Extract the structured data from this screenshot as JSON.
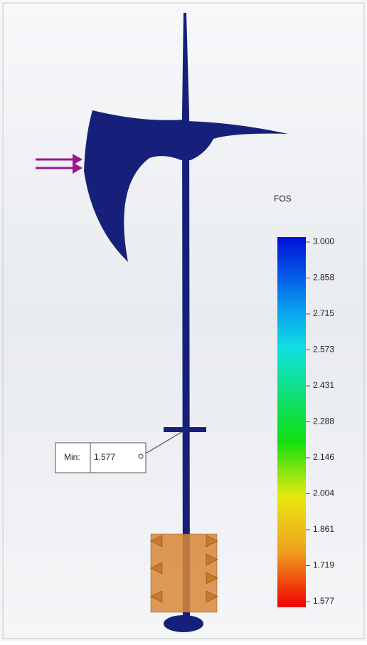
{
  "legend": {
    "title": "FOS",
    "labels": [
      "3.000",
      "2.858",
      "2.715",
      "2.573",
      "2.431",
      "2.288",
      "2.146",
      "2.004",
      "1.861",
      "1.719",
      "1.577"
    ]
  },
  "callout": {
    "label": "Min:",
    "value": "1.577"
  }
}
